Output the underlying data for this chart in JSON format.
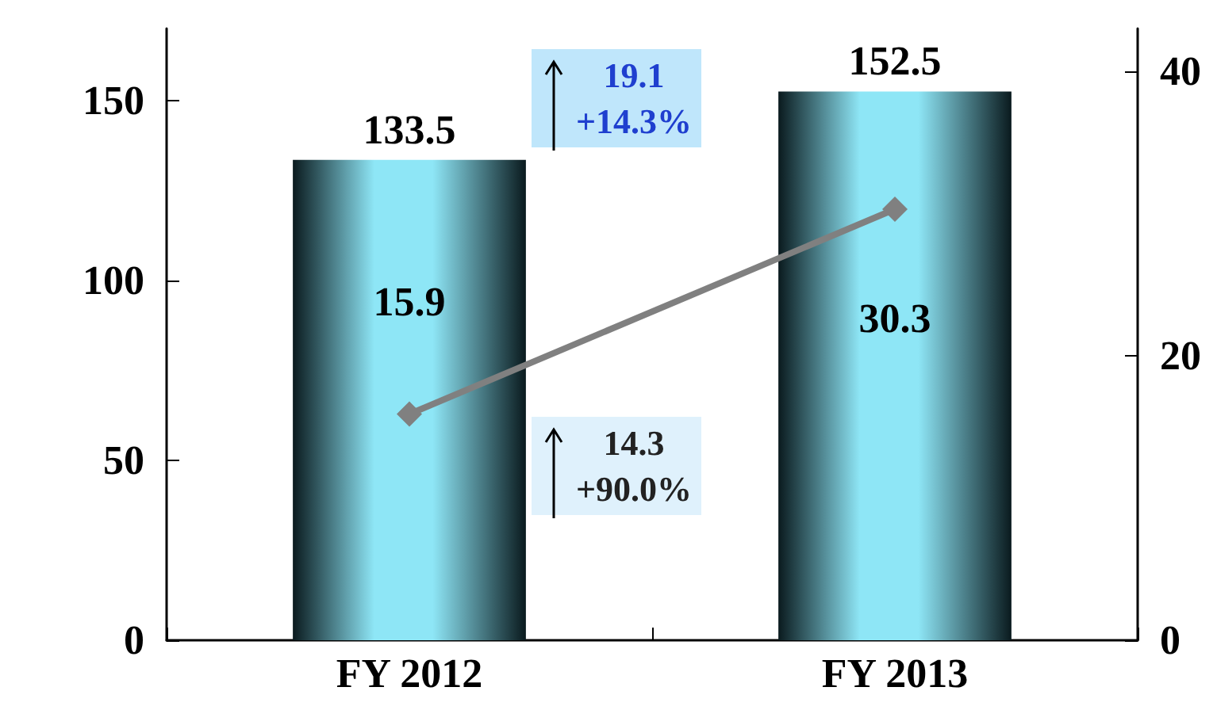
{
  "chart_data": {
    "type": "bar",
    "categories": [
      "FY 2012",
      "FY 2013"
    ],
    "series": [
      {
        "color": "#8ee6f6",
        "values": [
          133.5,
          152.5
        ]
      },
      {
        "type": "line",
        "axis": "y2",
        "color": "#808080",
        "marker": "diamond",
        "values": [
          15.9,
          30.3
        ]
      }
    ],
    "ylim": [
      0,
      170
    ],
    "yticks": [
      0,
      50,
      100,
      150
    ],
    "y2lim": [
      0,
      43
    ],
    "y2ticks": [
      0,
      20,
      40
    ],
    "data_labels": true,
    "grid": false,
    "annotations": [
      "19.1\n+14.3%",
      "14.3\n+90.0%"
    ]
  }
}
